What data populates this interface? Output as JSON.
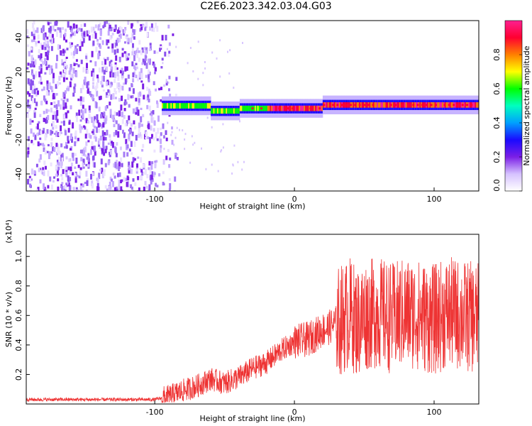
{
  "title": "C2E6.2023.342.03.04.G03",
  "chart_data": [
    {
      "type": "heatmap",
      "title": "",
      "xlabel": "Height of straight line (km)",
      "ylabel": "Frequency (Hz)",
      "xlim": [
        -192,
        132
      ],
      "ylim": [
        -50,
        50
      ],
      "xticks": [
        -100,
        0,
        100
      ],
      "yticks": [
        -40,
        -20,
        0,
        20,
        40
      ],
      "colorbar": {
        "label": "Normalized spectral amplitude",
        "range": [
          0.0,
          1.0
        ],
        "ticks": [
          "0.0",
          "0.2",
          "0.4",
          "0.6",
          "0.8"
        ],
        "colors": [
          "#ffffff",
          "#d6c2ff",
          "#7b1fe6",
          "#1a0aff",
          "#00a0ff",
          "#00ffc0",
          "#00ff00",
          "#ffff00",
          "#ff8000",
          "#ff0030",
          "#ff2090"
        ]
      },
      "regions": [
        {
          "x_range": [
            -192,
            -92
          ],
          "freq_range": [
            -50,
            50
          ],
          "amplitude": 0.05,
          "description_color": "#7b1fe6"
        },
        {
          "x_range": [
            -95,
            132
          ],
          "freq_center": 0,
          "freq_halfwidth": 4,
          "amplitude": 0.9
        }
      ]
    },
    {
      "type": "line",
      "title": "",
      "xlabel": "Height of straight line (km)",
      "ylabel": "SNR (10 * v/v)",
      "y_multiplier": "(x10⁴)",
      "xlim": [
        -192,
        132
      ],
      "ylim": [
        0,
        1.15
      ],
      "xticks": [
        -100,
        0,
        100
      ],
      "yticks": [
        "0.2",
        "0.4",
        "0.6",
        "0.8",
        "1.0"
      ],
      "color": "#ee3333",
      "series": [
        {
          "name": "",
          "x": [
            -192,
            -180,
            -160,
            -140,
            -120,
            -100,
            -90,
            -80,
            -70,
            -60,
            -50,
            -40,
            -30,
            -20,
            -10,
            0,
            10,
            20,
            25,
            30,
            35,
            40,
            45,
            50,
            60,
            70,
            80,
            90,
            100,
            110,
            120,
            132
          ],
          "y": [
            0.03,
            0.03,
            0.03,
            0.03,
            0.03,
            0.03,
            0.05,
            0.09,
            0.12,
            0.17,
            0.14,
            0.18,
            0.24,
            0.28,
            0.36,
            0.42,
            0.44,
            0.5,
            0.52,
            0.55,
            0.58,
            0.62,
            0.55,
            0.6,
            0.62,
            0.58,
            0.62,
            0.6,
            0.57,
            0.62,
            0.6,
            0.58
          ]
        }
      ]
    }
  ]
}
